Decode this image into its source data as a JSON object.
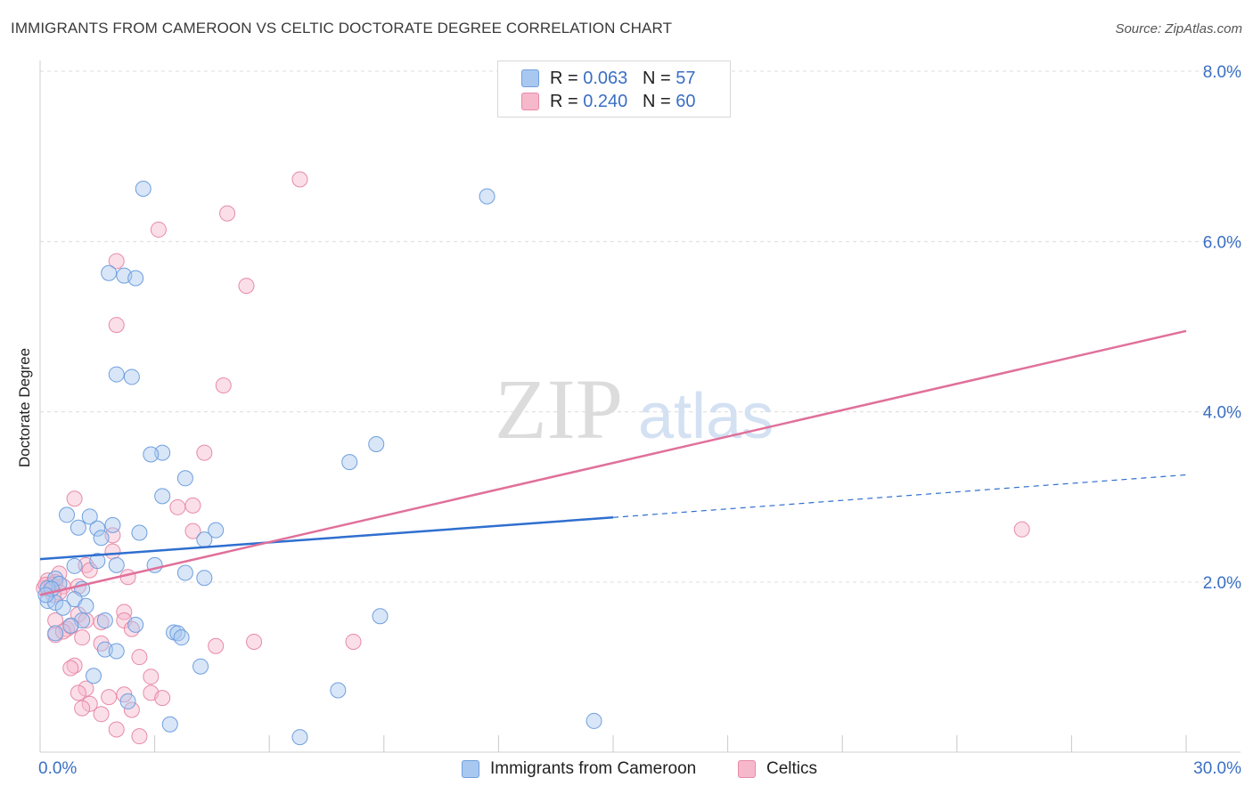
{
  "title": "IMMIGRANTS FROM CAMEROON VS CELTIC DOCTORATE DEGREE CORRELATION CHART",
  "source": "Source: ZipAtlas.com",
  "watermark": {
    "zip": "ZIP",
    "atlas": "atlas"
  },
  "legend_top": [
    {
      "r_label": "R = ",
      "r_value": "0.063",
      "n_label": "N = ",
      "n_value": "57"
    },
    {
      "r_label": "R = ",
      "r_value": "0.240",
      "n_label": "N = ",
      "n_value": "60"
    }
  ],
  "colors": {
    "blue_fill": "#a9c8f0",
    "blue_stroke": "#6f9fde",
    "blue_line": "#2f6fcf",
    "pink_fill": "#f6b8cb",
    "pink_stroke": "#e88aa8",
    "pink_line": "#e0709a",
    "tick_text": "#3a6fc4",
    "grid": "#dcdcdc"
  },
  "chart_data": {
    "type": "scatter",
    "title": "IMMIGRANTS FROM CAMEROON VS CELTIC DOCTORATE DEGREE CORRELATION CHART",
    "xlabel": "",
    "ylabel": "Doctorate Degree",
    "xlim": [
      0,
      30
    ],
    "ylim": [
      0,
      8.3
    ],
    "x_tick_labels": [
      "0.0%",
      "30.0%"
    ],
    "y_ticks": [
      2,
      4,
      6,
      8
    ],
    "y_tick_labels": [
      "2.0%",
      "4.0%",
      "6.0%",
      "8.0%"
    ],
    "series": [
      {
        "name": "Immigrants from Cameroon",
        "color": "blue",
        "r": 0.063,
        "n": 57,
        "trend": {
          "x0": 0,
          "y0": 2.27,
          "x1": 15,
          "y1": 2.76,
          "dash_x1": 30,
          "dash_y1": 3.26
        },
        "points": [
          [
            2.7,
            6.62
          ],
          [
            11.7,
            6.53
          ],
          [
            1.8,
            5.63
          ],
          [
            2.2,
            5.6
          ],
          [
            2.5,
            5.57
          ],
          [
            2.0,
            4.44
          ],
          [
            2.4,
            4.41
          ],
          [
            8.8,
            3.62
          ],
          [
            3.2,
            3.52
          ],
          [
            2.9,
            3.5
          ],
          [
            8.1,
            3.41
          ],
          [
            3.8,
            3.22
          ],
          [
            3.2,
            3.01
          ],
          [
            0.7,
            2.79
          ],
          [
            1.3,
            2.77
          ],
          [
            1.9,
            2.67
          ],
          [
            1.0,
            2.64
          ],
          [
            1.5,
            2.63
          ],
          [
            4.6,
            2.61
          ],
          [
            2.6,
            2.58
          ],
          [
            1.6,
            2.52
          ],
          [
            4.3,
            2.5
          ],
          [
            1.5,
            2.25
          ],
          [
            2.0,
            2.2
          ],
          [
            0.9,
            2.19
          ],
          [
            3.0,
            2.2
          ],
          [
            3.8,
            2.11
          ],
          [
            4.3,
            2.05
          ],
          [
            0.4,
            2.04
          ],
          [
            0.5,
            1.98
          ],
          [
            0.2,
            1.93
          ],
          [
            1.1,
            1.92
          ],
          [
            0.2,
            1.78
          ],
          [
            0.4,
            1.76
          ],
          [
            0.9,
            1.8
          ],
          [
            1.2,
            1.72
          ],
          [
            0.6,
            1.7
          ],
          [
            1.7,
            1.55
          ],
          [
            1.1,
            1.55
          ],
          [
            2.5,
            1.5
          ],
          [
            0.8,
            1.49
          ],
          [
            3.5,
            1.41
          ],
          [
            3.6,
            1.4
          ],
          [
            0.4,
            1.4
          ],
          [
            3.7,
            1.35
          ],
          [
            8.9,
            1.6
          ],
          [
            1.7,
            1.21
          ],
          [
            2.0,
            1.19
          ],
          [
            4.2,
            1.01
          ],
          [
            1.4,
            0.9
          ],
          [
            7.8,
            0.73
          ],
          [
            2.3,
            0.6
          ],
          [
            3.4,
            0.33
          ],
          [
            6.8,
            0.18
          ],
          [
            14.5,
            0.37
          ],
          [
            0.3,
            1.92
          ],
          [
            0.15,
            1.85
          ]
        ]
      },
      {
        "name": "Celtics",
        "color": "pink",
        "r": 0.24,
        "n": 60,
        "trend": {
          "x0": 0,
          "y0": 1.85,
          "x1": 30,
          "y1": 4.95
        },
        "points": [
          [
            6.8,
            6.73
          ],
          [
            4.9,
            6.33
          ],
          [
            3.1,
            6.14
          ],
          [
            2.0,
            5.77
          ],
          [
            5.4,
            5.48
          ],
          [
            2.0,
            5.02
          ],
          [
            4.8,
            4.31
          ],
          [
            4.3,
            3.52
          ],
          [
            0.9,
            2.98
          ],
          [
            3.6,
            2.88
          ],
          [
            4.0,
            2.9
          ],
          [
            25.7,
            2.62
          ],
          [
            4.0,
            2.6
          ],
          [
            1.9,
            2.55
          ],
          [
            1.9,
            2.36
          ],
          [
            1.2,
            2.2
          ],
          [
            1.3,
            2.14
          ],
          [
            0.5,
            2.1
          ],
          [
            2.3,
            2.06
          ],
          [
            0.4,
            2.0
          ],
          [
            0.2,
            2.02
          ],
          [
            0.6,
            1.95
          ],
          [
            0.1,
            1.93
          ],
          [
            0.3,
            1.97
          ],
          [
            1.0,
            1.95
          ],
          [
            0.5,
            1.88
          ],
          [
            0.35,
            1.85
          ],
          [
            0.15,
            1.97
          ],
          [
            2.2,
            1.65
          ],
          [
            0.4,
            1.55
          ],
          [
            1.0,
            1.62
          ],
          [
            1.6,
            1.53
          ],
          [
            0.7,
            1.45
          ],
          [
            2.2,
            1.55
          ],
          [
            2.4,
            1.45
          ],
          [
            1.2,
            1.55
          ],
          [
            0.8,
            1.48
          ],
          [
            0.4,
            1.38
          ],
          [
            1.1,
            1.35
          ],
          [
            4.6,
            1.25
          ],
          [
            5.6,
            1.3
          ],
          [
            8.2,
            1.3
          ],
          [
            1.6,
            1.28
          ],
          [
            2.6,
            1.12
          ],
          [
            0.9,
            1.02
          ],
          [
            0.8,
            0.99
          ],
          [
            2.9,
            0.89
          ],
          [
            1.2,
            0.75
          ],
          [
            2.2,
            0.68
          ],
          [
            2.9,
            0.7
          ],
          [
            1.0,
            0.7
          ],
          [
            1.8,
            0.65
          ],
          [
            3.2,
            0.64
          ],
          [
            1.3,
            0.57
          ],
          [
            1.1,
            0.52
          ],
          [
            2.4,
            0.5
          ],
          [
            1.6,
            0.45
          ],
          [
            2.0,
            0.27
          ],
          [
            2.6,
            0.19
          ],
          [
            0.6,
            1.42
          ]
        ]
      }
    ]
  }
}
